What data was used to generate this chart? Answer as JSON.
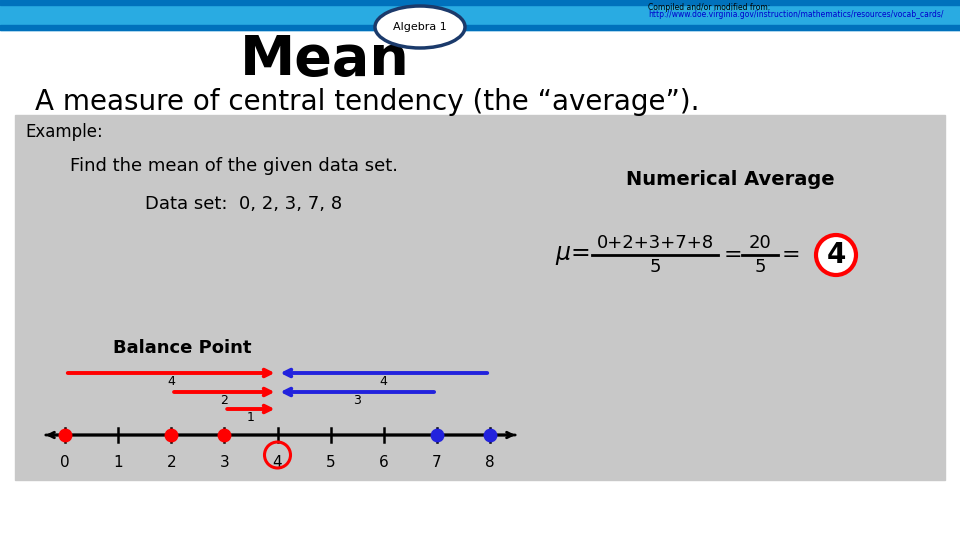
{
  "title": "Mean",
  "subtitle": "A measure of central tendency (the “average”).",
  "algebra1_label": "Algebra 1",
  "source_line1": "Compiled and/or modified from:",
  "source_line2": "http://www.doe.virginia.gov/instruction/mathematics/resources/vocab_cards/",
  "header_bar_color": "#29ABE2",
  "header_bar_dark": "#0071BC",
  "header_oval_facecolor": "#FFFFFF",
  "header_oval_edgecolor": "#1B3A6B",
  "bg_color": "#FFFFFF",
  "example_bg": "#C8C8C8",
  "example_label": "Example:",
  "find_text": "Find the mean of the given data set.",
  "data_set_text": "Data set:  0, 2, 3, 7, 8",
  "balance_point_label": "Balance Point",
  "numerical_average_label": "Numerical Average",
  "red_dots": [
    0,
    2,
    3
  ],
  "blue_dots": [
    7,
    8
  ],
  "balance_point": 4,
  "number_line_nums": [
    0,
    1,
    2,
    3,
    4,
    5,
    6,
    7,
    8
  ]
}
